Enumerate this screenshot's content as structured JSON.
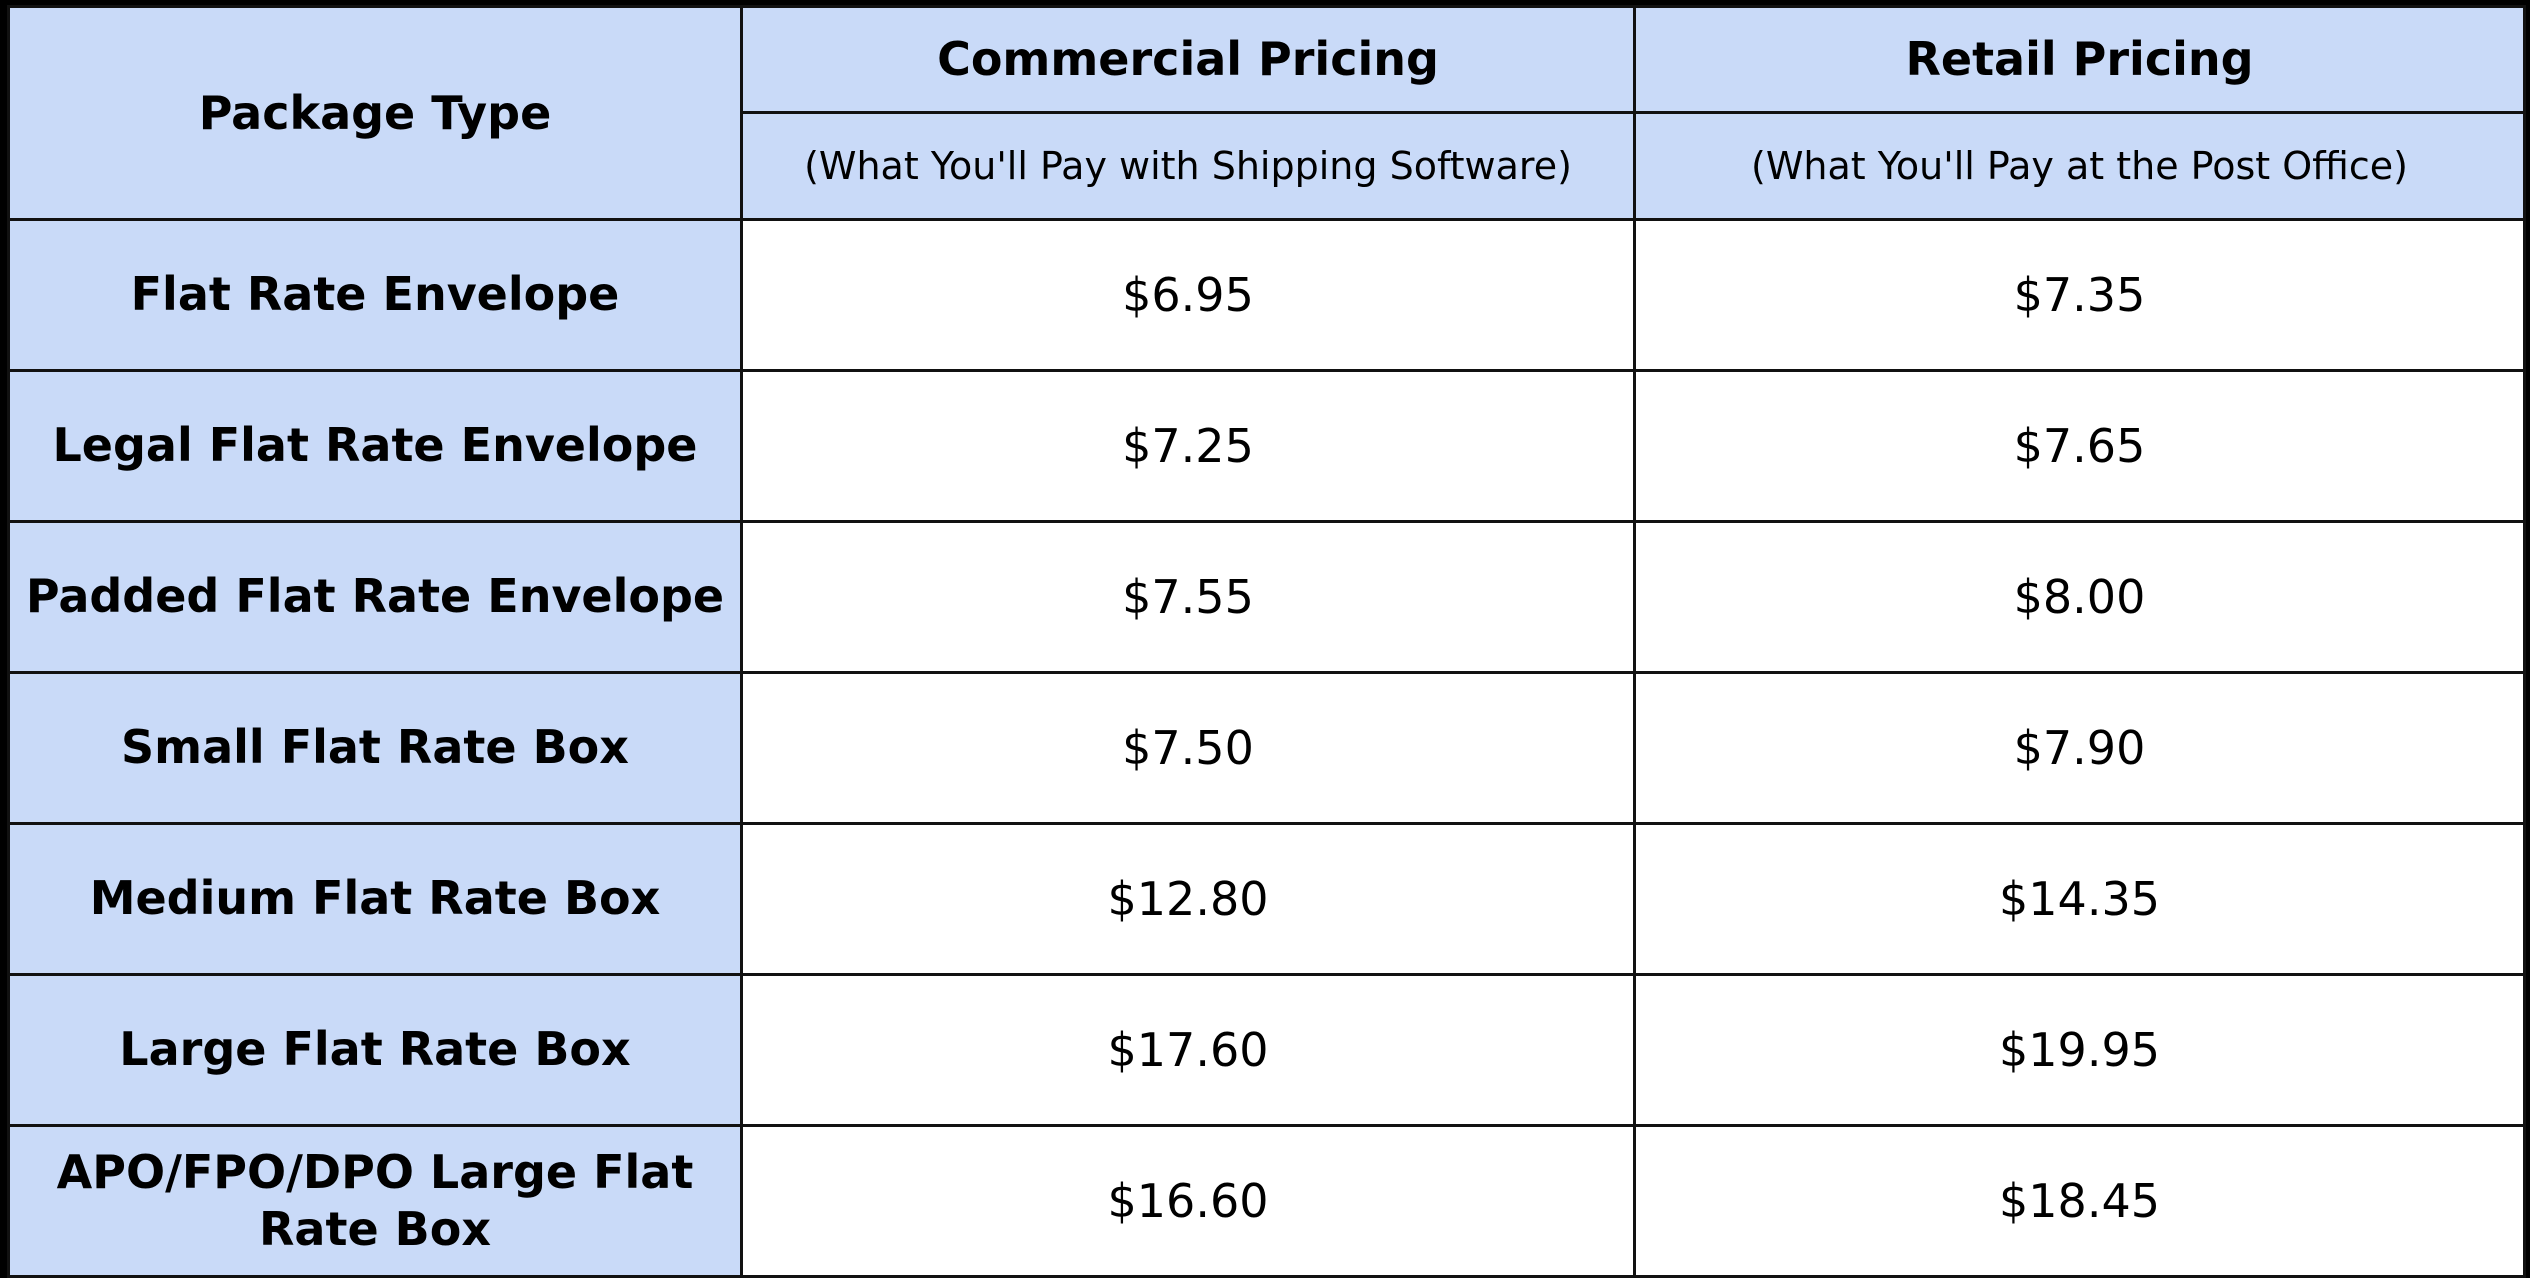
{
  "table": {
    "headers": {
      "package_type": "Package Type",
      "commercial": "Commercial Pricing",
      "commercial_sub": "(What You'll Pay with Shipping Software)",
      "retail": "Retail Pricing",
      "retail_sub": "(What You'll Pay at the Post Office)"
    },
    "rows": [
      {
        "type": "Flat Rate Envelope",
        "commercial": "$6.95",
        "retail": "$7.35"
      },
      {
        "type": "Legal Flat Rate Envelope",
        "commercial": "$7.25",
        "retail": "$7.65"
      },
      {
        "type": "Padded Flat Rate Envelope",
        "commercial": "$7.55",
        "retail": "$8.00"
      },
      {
        "type": "Small Flat Rate Box",
        "commercial": "$7.50",
        "retail": "$7.90"
      },
      {
        "type": "Medium Flat Rate Box",
        "commercial": "$12.80",
        "retail": "$14.35"
      },
      {
        "type": "Large Flat Rate Box",
        "commercial": "$17.60",
        "retail": "$19.95"
      },
      {
        "type": "APO/FPO/DPO Large Flat Rate Box",
        "commercial": "$16.60",
        "retail": "$18.45"
      }
    ]
  },
  "colors": {
    "header_bg": "#c9daf8",
    "cell_bg": "#ffffff",
    "border": "#111111",
    "frame": "#000000"
  }
}
